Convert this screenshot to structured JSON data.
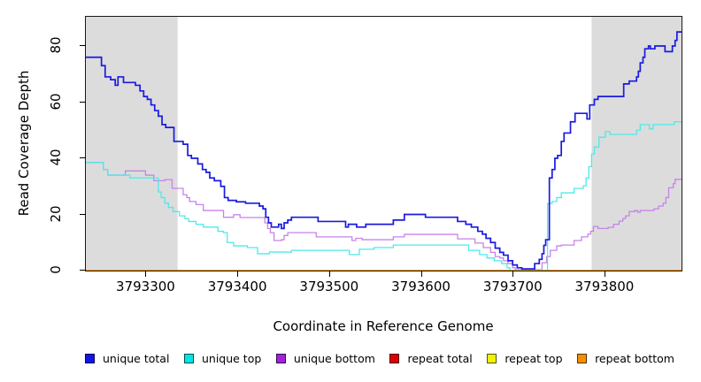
{
  "axes": {
    "y_title": "Read Coverage Depth",
    "x_title": "Coordinate in Reference Genome"
  },
  "panel": {
    "background": "#ffffff",
    "shade_color": "#dcdcdc",
    "box_color": "#1a1a1a"
  },
  "chart_data": {
    "type": "line",
    "step": true,
    "title": "",
    "xlabel": "Coordinate in Reference Genome",
    "ylabel": "Read Coverage Depth",
    "xlim": [
      3793234,
      3793883
    ],
    "ylim": [
      0,
      90.4
    ],
    "grid": false,
    "legend_position": "bottom",
    "x_ticks": [
      {
        "value": 3793300,
        "label": "3793300"
      },
      {
        "value": 3793400,
        "label": "3793400"
      },
      {
        "value": 3793500,
        "label": "3793500"
      },
      {
        "value": 3793600,
        "label": "3793600"
      },
      {
        "value": 3793700,
        "label": "3793700"
      },
      {
        "value": 3793800,
        "label": "3793800"
      }
    ],
    "y_ticks": [
      {
        "value": 0,
        "label": "0"
      },
      {
        "value": 20,
        "label": "20"
      },
      {
        "value": 40,
        "label": "40"
      },
      {
        "value": 60,
        "label": "60"
      },
      {
        "value": 80,
        "label": "80"
      }
    ],
    "shaded_regions": [
      {
        "x0": 3793234,
        "x1": 3793334,
        "color": "#dcdcdc"
      },
      {
        "x0": 3793785,
        "x1": 3793883,
        "color": "#dcdcdc"
      }
    ],
    "series": [
      {
        "name": "repeat total",
        "color": "#dd0000",
        "width": 1.2,
        "points": [
          [
            3793234,
            0
          ],
          [
            3793883,
            0
          ]
        ]
      },
      {
        "name": "repeat top",
        "color": "#f2f200",
        "width": 1.2,
        "points": [
          [
            3793234,
            0
          ],
          [
            3793883,
            0
          ]
        ]
      },
      {
        "name": "unique bottom",
        "color": "#c783e8",
        "width": 1.3,
        "points": [
          [
            3793234,
            38.5
          ],
          [
            3793253,
            36
          ],
          [
            3793258,
            34
          ],
          [
            3793277,
            35.5
          ],
          [
            3793299,
            34
          ],
          [
            3793308,
            32
          ],
          [
            3793320,
            32.4
          ],
          [
            3793328,
            29.3
          ],
          [
            3793340,
            27
          ],
          [
            3793344,
            26
          ],
          [
            3793347,
            24.6
          ],
          [
            3793354,
            23.5
          ],
          [
            3793362,
            21.4
          ],
          [
            3793384,
            19
          ],
          [
            3793395,
            19.9
          ],
          [
            3793402,
            18.9
          ],
          [
            3793429,
            17
          ],
          [
            3793432,
            15
          ],
          [
            3793435,
            13.5
          ],
          [
            3793439,
            10.7
          ],
          [
            3793447,
            11
          ],
          [
            3793450,
            12.5
          ],
          [
            3793454,
            13.5
          ],
          [
            3793485,
            12
          ],
          [
            3793524,
            10.7
          ],
          [
            3793528,
            11.5
          ],
          [
            3793535,
            11
          ],
          [
            3793569,
            12
          ],
          [
            3793581,
            12.9
          ],
          [
            3793639,
            11.3
          ],
          [
            3793658,
            9.8
          ],
          [
            3793667,
            8.2
          ],
          [
            3793675,
            6.5
          ],
          [
            3793680,
            5
          ],
          [
            3793685,
            4.5
          ],
          [
            3793689,
            3.5
          ],
          [
            3793694,
            2.5
          ],
          [
            3793699,
            1
          ],
          [
            3793702,
            0.3
          ],
          [
            3793728,
            0.3
          ],
          [
            3793731,
            2.8
          ],
          [
            3793736,
            5
          ],
          [
            3793740,
            7.2
          ],
          [
            3793747,
            8.8
          ],
          [
            3793752,
            9.1
          ],
          [
            3793766,
            10.7
          ],
          [
            3793774,
            12
          ],
          [
            3793781,
            13
          ],
          [
            3793784,
            14
          ],
          [
            3793787,
            15.7
          ],
          [
            3793792,
            15
          ],
          [
            3793803,
            15.4
          ],
          [
            3793809,
            16.5
          ],
          [
            3793815,
            17.6
          ],
          [
            3793819,
            18.5
          ],
          [
            3793822,
            19.5
          ],
          [
            3793826,
            21
          ],
          [
            3793832,
            21.4
          ],
          [
            3793835,
            20.8
          ],
          [
            3793838,
            21.4
          ],
          [
            3793853,
            22
          ],
          [
            3793858,
            23
          ],
          [
            3793863,
            24
          ],
          [
            3793866,
            26
          ],
          [
            3793869,
            29.5
          ],
          [
            3793874,
            31
          ],
          [
            3793876,
            32.5
          ],
          [
            3793883,
            32.5
          ]
        ]
      },
      {
        "name": "unique top",
        "color": "#4fe9e9",
        "width": 1.3,
        "points": [
          [
            3793234,
            38.5
          ],
          [
            3793253,
            36
          ],
          [
            3793258,
            34
          ],
          [
            3793282,
            33
          ],
          [
            3793313,
            28
          ],
          [
            3793316,
            26
          ],
          [
            3793320,
            24
          ],
          [
            3793324,
            22.5
          ],
          [
            3793329,
            21
          ],
          [
            3793336,
            19.5
          ],
          [
            3793342,
            18.5
          ],
          [
            3793346,
            17.5
          ],
          [
            3793354,
            16.5
          ],
          [
            3793362,
            15.5
          ],
          [
            3793378,
            14
          ],
          [
            3793384,
            13.5
          ],
          [
            3793388,
            10
          ],
          [
            3793395,
            8.8
          ],
          [
            3793410,
            8.2
          ],
          [
            3793421,
            6
          ],
          [
            3793434,
            6.6
          ],
          [
            3793458,
            7.2
          ],
          [
            3793521,
            5.7
          ],
          [
            3793532,
            7.6
          ],
          [
            3793548,
            8.2
          ],
          [
            3793569,
            9.1
          ],
          [
            3793651,
            7.2
          ],
          [
            3793663,
            5.7
          ],
          [
            3793671,
            4.5
          ],
          [
            3793679,
            3.5
          ],
          [
            3793687,
            2.5
          ],
          [
            3793693,
            1
          ],
          [
            3793696,
            0.1
          ],
          [
            3793735,
            0.1
          ],
          [
            3793737,
            23.9
          ],
          [
            3793742,
            24.6
          ],
          [
            3793747,
            26
          ],
          [
            3793752,
            27.7
          ],
          [
            3793766,
            29.3
          ],
          [
            3793776,
            30.2
          ],
          [
            3793779,
            33
          ],
          [
            3793782,
            37
          ],
          [
            3793785,
            41.5
          ],
          [
            3793788,
            44
          ],
          [
            3793793,
            47.5
          ],
          [
            3793800,
            49.5
          ],
          [
            3793805,
            48.5
          ],
          [
            3793834,
            50
          ],
          [
            3793838,
            52
          ],
          [
            3793848,
            50.5
          ],
          [
            3793852,
            52
          ],
          [
            3793875,
            53
          ],
          [
            3793883,
            53
          ]
        ]
      },
      {
        "name": "unique total",
        "color": "#1a1ae0",
        "width": 1.7,
        "points": [
          [
            3793234,
            76
          ],
          [
            3793251,
            73
          ],
          [
            3793255,
            69
          ],
          [
            3793261,
            68
          ],
          [
            3793266,
            66
          ],
          [
            3793269,
            69
          ],
          [
            3793275,
            67
          ],
          [
            3793288,
            66
          ],
          [
            3793293,
            64
          ],
          [
            3793297,
            62
          ],
          [
            3793301,
            61
          ],
          [
            3793305,
            59
          ],
          [
            3793309,
            57
          ],
          [
            3793313,
            55
          ],
          [
            3793317,
            52
          ],
          [
            3793321,
            51
          ],
          [
            3793330,
            46
          ],
          [
            3793340,
            45
          ],
          [
            3793345,
            41
          ],
          [
            3793349,
            40
          ],
          [
            3793356,
            38
          ],
          [
            3793361,
            36
          ],
          [
            3793365,
            35
          ],
          [
            3793369,
            33
          ],
          [
            3793374,
            32
          ],
          [
            3793381,
            30
          ],
          [
            3793385,
            26
          ],
          [
            3793389,
            25
          ],
          [
            3793398,
            24.5
          ],
          [
            3793408,
            24
          ],
          [
            3793423,
            23
          ],
          [
            3793427,
            22
          ],
          [
            3793430,
            19
          ],
          [
            3793433,
            17
          ],
          [
            3793436,
            15.5
          ],
          [
            3793444,
            16.5
          ],
          [
            3793447,
            15
          ],
          [
            3793450,
            17
          ],
          [
            3793454,
            18
          ],
          [
            3793458,
            19
          ],
          [
            3793487,
            17.5
          ],
          [
            3793517,
            15.5
          ],
          [
            3793520,
            16.5
          ],
          [
            3793529,
            15.5
          ],
          [
            3793539,
            16.5
          ],
          [
            3793569,
            18
          ],
          [
            3793581,
            20
          ],
          [
            3793604,
            19
          ],
          [
            3793639,
            17.5
          ],
          [
            3793648,
            16.5
          ],
          [
            3793654,
            15.5
          ],
          [
            3793661,
            14
          ],
          [
            3793666,
            13
          ],
          [
            3793670,
            11.5
          ],
          [
            3793675,
            10
          ],
          [
            3793680,
            8
          ],
          [
            3793685,
            6.5
          ],
          [
            3793689,
            5.5
          ],
          [
            3793694,
            3.5
          ],
          [
            3793699,
            2
          ],
          [
            3793704,
            1
          ],
          [
            3793709,
            0.6
          ],
          [
            3793723,
            2.5
          ],
          [
            3793728,
            4
          ],
          [
            3793731,
            6
          ],
          [
            3793733,
            9
          ],
          [
            3793735,
            11
          ],
          [
            3793739,
            33
          ],
          [
            3793742,
            36
          ],
          [
            3793745,
            40
          ],
          [
            3793748,
            41
          ],
          [
            3793752,
            46
          ],
          [
            3793755,
            49
          ],
          [
            3793762,
            53
          ],
          [
            3793767,
            56
          ],
          [
            3793780,
            54
          ],
          [
            3793783,
            59
          ],
          [
            3793788,
            61
          ],
          [
            3793792,
            62
          ],
          [
            3793820,
            66.5
          ],
          [
            3793826,
            67.5
          ],
          [
            3793834,
            69
          ],
          [
            3793836,
            71
          ],
          [
            3793838,
            74
          ],
          [
            3793841,
            76
          ],
          [
            3793843,
            79
          ],
          [
            3793847,
            80
          ],
          [
            3793849,
            79
          ],
          [
            3793854,
            80
          ],
          [
            3793865,
            78
          ],
          [
            3793873,
            80
          ],
          [
            3793876,
            82
          ],
          [
            3793878,
            85
          ],
          [
            3793883,
            85
          ]
        ]
      },
      {
        "name": "repeat bottom",
        "color": "#f28b00",
        "width": 1.6,
        "points": [
          [
            3793234,
            0
          ],
          [
            3793883,
            0
          ]
        ]
      }
    ],
    "legend": [
      {
        "label": "unique total",
        "color": "#1414e6"
      },
      {
        "label": "unique top",
        "color": "#00e5e5"
      },
      {
        "label": "unique bottom",
        "color": "#a122d9"
      },
      {
        "label": "repeat total",
        "color": "#dd0000"
      },
      {
        "label": "repeat top",
        "color": "#f2f200"
      },
      {
        "label": "repeat bottom",
        "color": "#f29000"
      }
    ]
  }
}
